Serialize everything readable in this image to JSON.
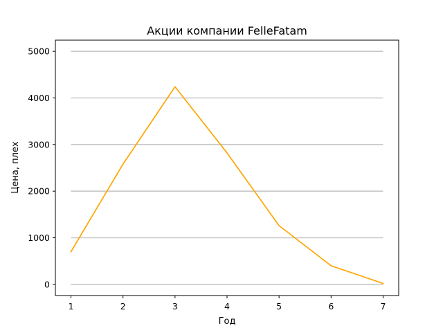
{
  "chart_data": {
    "type": "line",
    "title": "Акции компании FelleFatam",
    "xlabel": "Год",
    "ylabel": "Цена, плех",
    "x": [
      1,
      2,
      3,
      4,
      5,
      6,
      7
    ],
    "xticks": [
      "1",
      "2",
      "3",
      "4",
      "5",
      "6",
      "7"
    ],
    "xlim": [
      0.7,
      7.3
    ],
    "yticks": [
      "0",
      "1000",
      "2000",
      "3000",
      "4000",
      "5000"
    ],
    "ylim": [
      -240,
      5240
    ],
    "grid": "y-major",
    "series": [
      {
        "color": "#FFA500",
        "values": [
          700,
          2580,
          4240,
          2820,
          1260,
          400,
          20
        ]
      }
    ]
  }
}
